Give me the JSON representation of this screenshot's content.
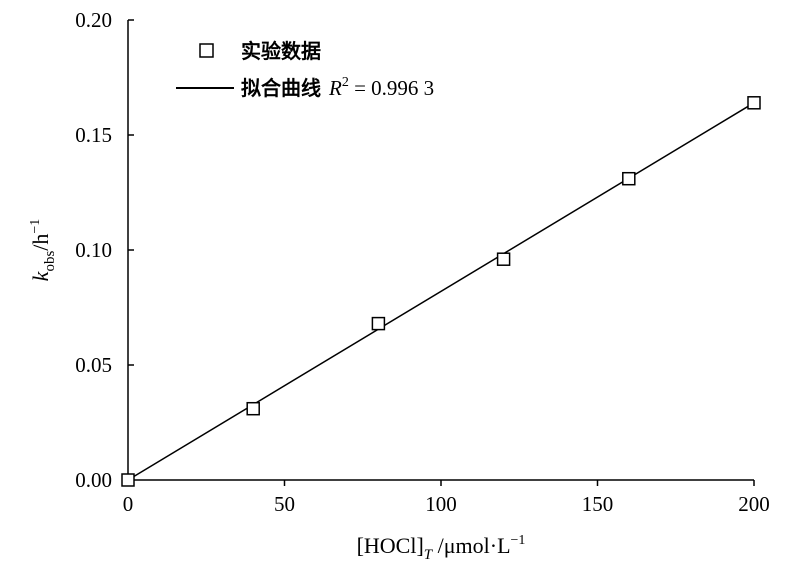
{
  "chart_data": {
    "type": "scatter",
    "title": "",
    "xlabel": {
      "main": "[HOCl]",
      "sub": "T",
      "unit": " /μmol·L",
      "unit_sup": "−1"
    },
    "ylabel": {
      "main": "k",
      "sub": "obs",
      "unit": "/h",
      "unit_sup": "−1"
    },
    "xlim": [
      0,
      200
    ],
    "ylim": [
      0,
      0.2
    ],
    "x_ticks": [
      0,
      50,
      100,
      150,
      200
    ],
    "x_tick_labels": [
      "0",
      "50",
      "100",
      "150",
      "200"
    ],
    "y_ticks": [
      0,
      0.05,
      0.1,
      0.15,
      0.2
    ],
    "y_tick_labels": [
      "0.00",
      "0.05",
      "0.10",
      "0.15",
      "0.20"
    ],
    "grid": false,
    "legend_position": "top-left",
    "series": [
      {
        "name": "实验数据",
        "kind": "scatter",
        "marker": "open-square",
        "x": [
          0,
          40,
          80,
          120,
          160,
          200
        ],
        "y": [
          0.0,
          0.031,
          0.068,
          0.096,
          0.131,
          0.164
        ]
      },
      {
        "name": "拟合曲线",
        "kind": "line",
        "x": [
          0,
          200
        ],
        "y": [
          0.0,
          0.164
        ]
      }
    ],
    "fit_annotation": {
      "r_symbol": "R",
      "r_sup": "2",
      "r_value": " = 0.996 3"
    }
  }
}
